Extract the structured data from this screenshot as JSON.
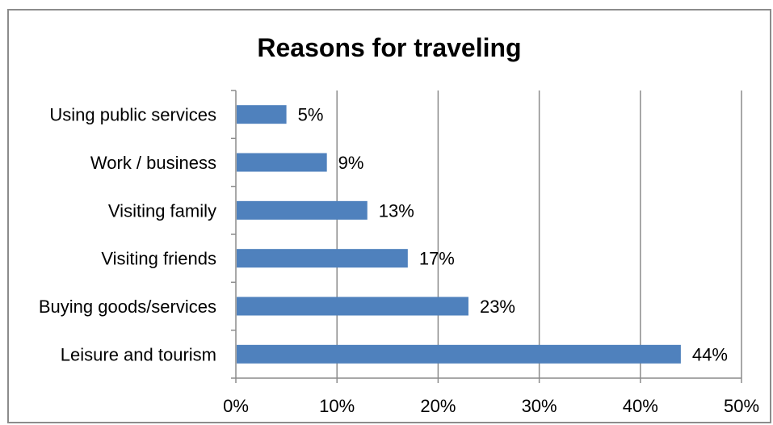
{
  "chart_data": {
    "type": "bar",
    "orientation": "horizontal",
    "title": "Reasons for traveling",
    "xlabel": "",
    "ylabel": "",
    "categories": [
      "Using public services",
      "Work / business",
      "Visiting family",
      "Visiting friends",
      "Buying goods/services",
      "Leisure and tourism"
    ],
    "values": [
      5,
      9,
      13,
      17,
      23,
      44
    ],
    "value_labels": [
      "5%",
      "9%",
      "13%",
      "17%",
      "23%",
      "44%"
    ],
    "xlim": [
      0,
      50
    ],
    "x_ticks": [
      0,
      10,
      20,
      30,
      40,
      50
    ],
    "x_tick_labels": [
      "0%",
      "10%",
      "20%",
      "30%",
      "40%",
      "50%"
    ],
    "grid": true,
    "legend": "none",
    "bar_color": "#4f81bd"
  }
}
